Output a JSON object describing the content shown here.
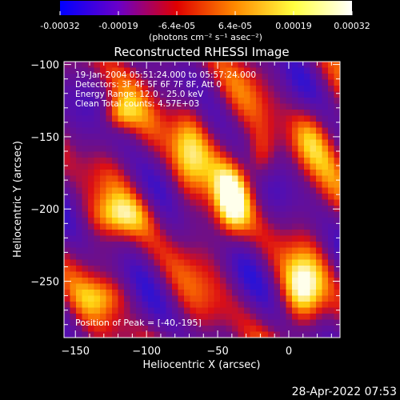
{
  "chart_data": {
    "type": "heatmap",
    "title": "Reconstructed RHESSI Image",
    "xlabel": "Heliocentric X (arcsec)",
    "ylabel": "Heliocentric Y (arcsec)",
    "xlim": [
      -158,
      36
    ],
    "ylim": [
      -289,
      -98
    ],
    "x_ticks": [
      -150,
      -100,
      -50,
      0
    ],
    "y_ticks": [
      -100,
      -150,
      -200,
      -250
    ],
    "colorbar": {
      "min": -0.00032,
      "max": 0.00032,
      "ticks": [
        "-0.00032",
        "-0.00019",
        "-6.4e-05",
        "6.4e-05",
        "0.00019",
        "0.00032"
      ],
      "unit_label": "(photons cm⁻² s⁻¹ asec⁻²)",
      "colors": [
        "#0000ff",
        "#6a00c8",
        "#e00000",
        "#ff8a00",
        "#ffff40",
        "#ffffff"
      ]
    },
    "annotations": [
      "19-Jan-2004 05:51:24.000 to 05:57:24.000",
      "Detectors: 3F 4F 5F 6F 7F 8F, Att 0",
      "Energy Range: 12.0 - 25.0 keV",
      "Clean    Total counts: 4.57E+03"
    ],
    "peak_label": "Position of Peak = [-40,-195]",
    "peak": [
      -40,
      -195
    ]
  },
  "footer": {
    "timestamp": "28-Apr-2022 07:53"
  }
}
